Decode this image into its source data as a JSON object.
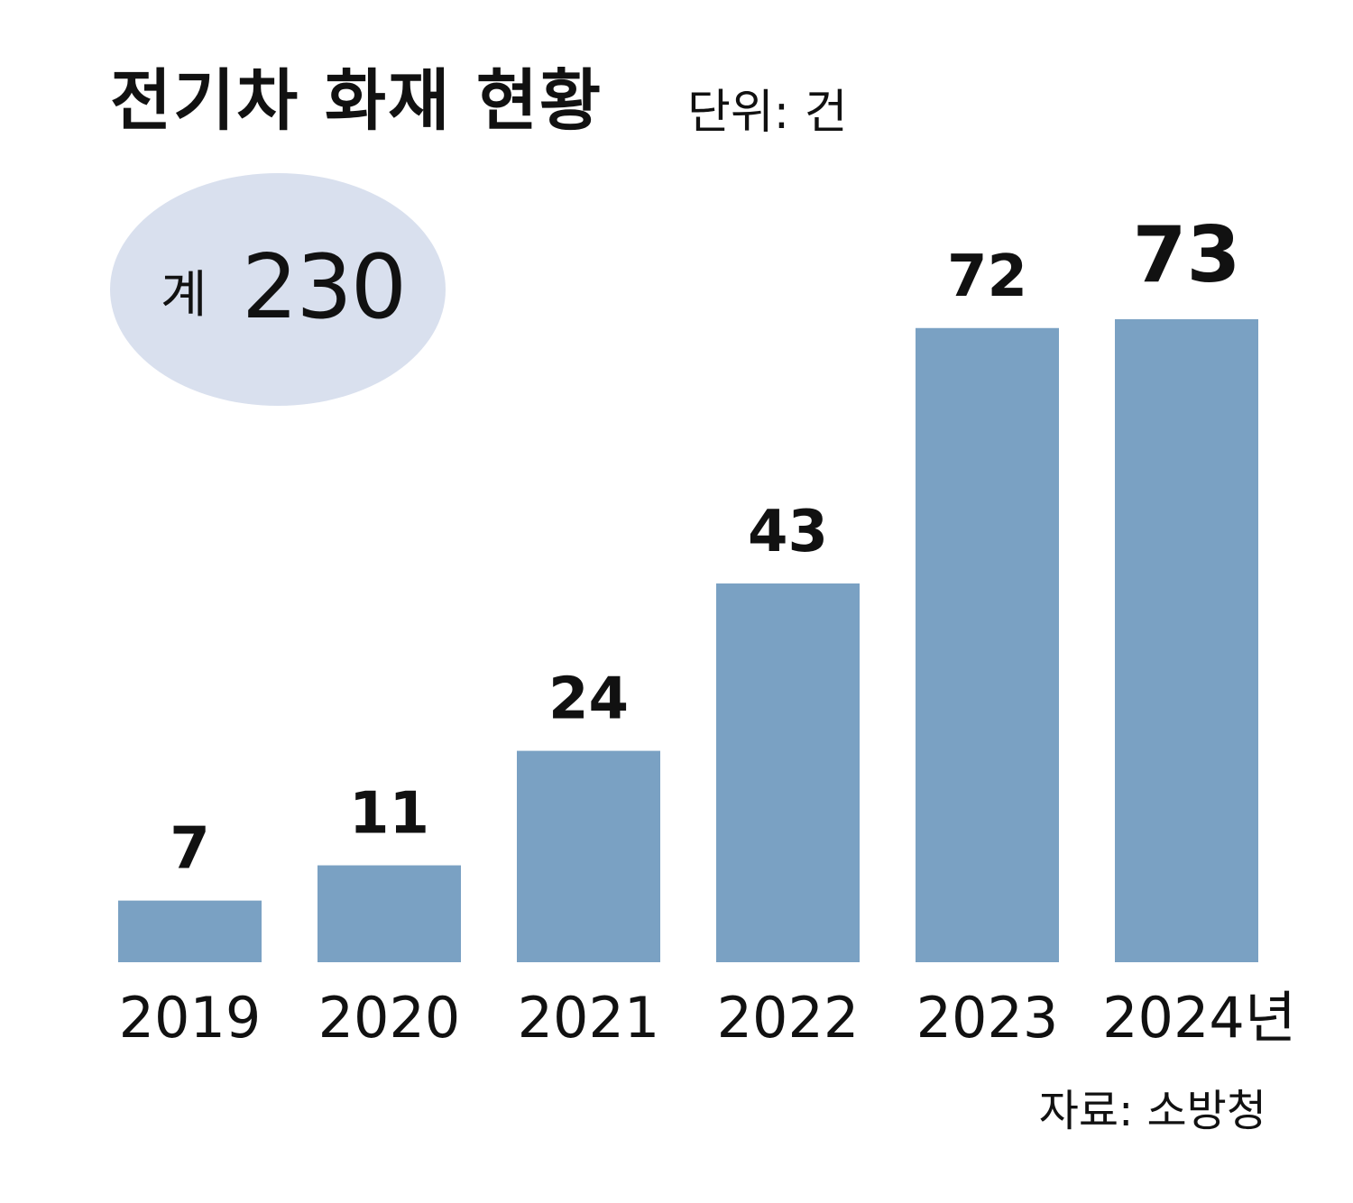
{
  "title": "전기차 화재 현황",
  "unit": "단위: 건",
  "total": {
    "label": "계",
    "value": "230"
  },
  "source": "자료: 소방청",
  "colors": {
    "bar": "#7aa1c3",
    "ellipse": "#d9e0ee",
    "text": "#111111"
  },
  "chart_data": {
    "type": "bar",
    "categories": [
      "2019",
      "2020",
      "2021",
      "2022",
      "2023",
      "2024년"
    ],
    "values": [
      7,
      11,
      24,
      43,
      72,
      73
    ],
    "title": "전기차 화재 현황",
    "xlabel": "",
    "ylabel": "",
    "ylim": [
      0,
      73
    ],
    "grid": false,
    "highlight_index": 5
  }
}
